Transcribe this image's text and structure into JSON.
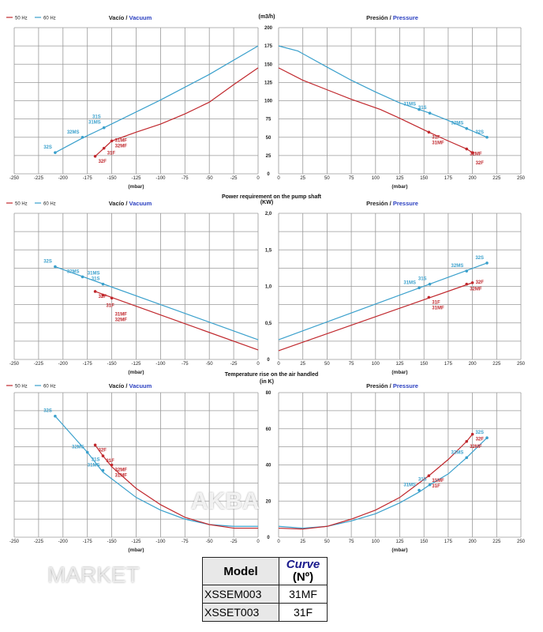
{
  "colors": {
    "hz50": "#c0282d",
    "hz60": "#3aa0cc",
    "grid": "#9a9a9a",
    "pressure_word": "#2a3fc0"
  },
  "legend": {
    "hz50": "50 Hz",
    "hz60": "60 Hz"
  },
  "watermark": [
    "AKBA",
    "MARKET"
  ],
  "table": {
    "headers": {
      "model": "Model",
      "curve": "Curve",
      "curve_sub": "(Nº)"
    },
    "rows": [
      {
        "model": "XSSEM003",
        "curve": "31MF"
      },
      {
        "model": "XSSET003",
        "curve": "31F"
      }
    ]
  },
  "chart_data": [
    {
      "type": "line",
      "title": "",
      "yunit": "(m3/h)",
      "ylim": [
        0,
        200
      ],
      "yticks": [
        "0",
        "25",
        "50",
        "75",
        "100",
        "125",
        "150",
        "175",
        "200"
      ],
      "ytick_values": [
        0,
        25,
        50,
        75,
        100,
        125,
        150,
        175,
        200
      ],
      "grid_step": 25,
      "vacuum_label": [
        "Vacío / ",
        "Vacuum"
      ],
      "pressure_label": [
        "Presión / ",
        "Pressure"
      ],
      "xlabel": "(mbar)",
      "vacuum_xticks": [
        "-250",
        "-225",
        "-200",
        "-175",
        "-150",
        "-125",
        "-100",
        "-75",
        "-50",
        "-25",
        "0"
      ],
      "pressure_xticks": [
        "0",
        "25",
        "50",
        "75",
        "100",
        "125",
        "150",
        "175",
        "200",
        "225",
        "250"
      ],
      "vacuum": [
        {
          "name": "60 Hz",
          "points": [
            [
              -208,
              29
            ],
            [
              -180,
              49
            ],
            [
              -158,
              63
            ],
            [
              -100,
              101
            ],
            [
              -50,
              136
            ],
            [
              0,
              175
            ]
          ],
          "markers": [
            {
              "x": -208,
              "y": 29,
              "labels": [
                "32S"
              ]
            },
            {
              "x": -180,
              "y": 50,
              "labels": [
                "32MS"
              ]
            },
            {
              "x": -158,
              "y": 63,
              "labels": [
                "31S",
                "31MS"
              ]
            }
          ]
        },
        {
          "name": "50 Hz",
          "points": [
            [
              -167,
              24
            ],
            [
              -158,
              35
            ],
            [
              -150,
              45
            ],
            [
              -125,
              57
            ],
            [
              -100,
              68
            ],
            [
              -75,
              82
            ],
            [
              -50,
              98
            ],
            [
              -25,
              122
            ],
            [
              0,
              145
            ]
          ],
          "markers": [
            {
              "x": -167,
              "y": 24,
              "labels": [
                "32F"
              ]
            },
            {
              "x": -158,
              "y": 35,
              "labels": [
                "31F"
              ]
            },
            {
              "x": -150,
              "y": 45,
              "labels": [
                "31MF",
                "32MF"
              ]
            }
          ]
        }
      ],
      "pressure": [
        {
          "name": "60 Hz",
          "points": [
            [
              0,
              175
            ],
            [
              20,
              168
            ],
            [
              50,
              146
            ],
            [
              75,
              128
            ],
            [
              100,
              112
            ],
            [
              125,
              97
            ],
            [
              145,
              88
            ],
            [
              156,
              83
            ],
            [
              175,
              73
            ],
            [
              194,
              62
            ],
            [
              215,
              50
            ]
          ],
          "markers": [
            {
              "x": 145,
              "y": 88,
              "labels": [
                "31MS"
              ]
            },
            {
              "x": 156,
              "y": 83,
              "labels": [
                "31S"
              ]
            },
            {
              "x": 194,
              "y": 62,
              "labels": [
                "32MS"
              ]
            },
            {
              "x": 215,
              "y": 50,
              "labels": [
                "32S"
              ]
            }
          ]
        },
        {
          "name": "50 Hz",
          "points": [
            [
              0,
              145
            ],
            [
              25,
              128
            ],
            [
              50,
              115
            ],
            [
              75,
              102
            ],
            [
              105,
              88
            ],
            [
              125,
              76
            ],
            [
              155,
              57
            ],
            [
              175,
              45
            ],
            [
              194,
              34
            ],
            [
              200,
              29
            ]
          ],
          "markers": [
            {
              "x": 155,
              "y": 57,
              "labels": [
                "31F",
                "31MF"
              ]
            },
            {
              "x": 194,
              "y": 34,
              "labels": [
                "32MF"
              ]
            },
            {
              "x": 200,
              "y": 29,
              "labels": [
                "32F"
              ]
            }
          ]
        }
      ]
    },
    {
      "type": "line",
      "title": "Power requirement on the pump shaft",
      "yunit": "(KW)",
      "ylim": [
        0,
        2
      ],
      "yticks": [
        "0",
        "0,5",
        "1,0",
        "1,5",
        "2,0"
      ],
      "ytick_values": [
        0,
        0.5,
        1,
        1.5,
        2
      ],
      "grid_step": 0.25,
      "vacuum_label": [
        "Vacío / ",
        "Vacuum"
      ],
      "pressure_label": [
        "Presión / ",
        "Pressure"
      ],
      "xlabel": "(mbar)",
      "vacuum_xticks": [
        "-250",
        "-225",
        "-200",
        "-175",
        "-150",
        "-125",
        "-100",
        "-75",
        "-50",
        "-25",
        "0"
      ],
      "pressure_xticks": [
        "0",
        "25",
        "50",
        "75",
        "100",
        "125",
        "150",
        "175",
        "200",
        "225",
        "250"
      ],
      "vacuum": [
        {
          "name": "60 Hz",
          "points": [
            [
              -208,
              1.27
            ],
            [
              0,
              0.27
            ]
          ],
          "markers": [
            {
              "x": -208,
              "y": 1.27,
              "labels": [
                "32S"
              ]
            },
            {
              "x": -180,
              "y": 1.13,
              "labels": [
                "32MS"
              ]
            },
            {
              "x": -159,
              "y": 1.03,
              "labels": [
                "31MS",
                "31S"
              ]
            }
          ]
        },
        {
          "name": "50 Hz",
          "points": [
            [
              -167,
              0.93
            ],
            [
              0,
              0.13
            ]
          ],
          "markers": [
            {
              "x": -167,
              "y": 0.93,
              "labels": [
                "32F"
              ]
            },
            {
              "x": -159,
              "y": 0.88,
              "labels": [
                "31F"
              ]
            },
            {
              "x": -150,
              "y": 0.84,
              "labels": [
                "31MF",
                "32MF"
              ]
            }
          ]
        }
      ],
      "pressure": [
        {
          "name": "60 Hz",
          "points": [
            [
              0,
              0.27
            ],
            [
              215,
              1.32
            ]
          ],
          "markers": [
            {
              "x": 145,
              "y": 0.98,
              "labels": [
                "31MS"
              ]
            },
            {
              "x": 156,
              "y": 1.03,
              "labels": [
                "31S"
              ]
            },
            {
              "x": 194,
              "y": 1.21,
              "labels": [
                "32MS"
              ]
            },
            {
              "x": 215,
              "y": 1.32,
              "labels": [
                "32S"
              ]
            }
          ]
        },
        {
          "name": "50 Hz",
          "points": [
            [
              0,
              0.12
            ],
            [
              200,
              1.05
            ]
          ],
          "markers": [
            {
              "x": 155,
              "y": 0.85,
              "labels": [
                "31F",
                "31MF"
              ]
            },
            {
              "x": 194,
              "y": 1.03,
              "labels": [
                "32MF"
              ]
            },
            {
              "x": 200,
              "y": 1.05,
              "labels": [
                "32F"
              ]
            }
          ]
        }
      ]
    },
    {
      "type": "line",
      "title": "Temperature rise on the air handled",
      "yunit": "(in K)",
      "ylim": [
        0,
        80
      ],
      "yticks": [
        "0",
        "20",
        "40",
        "60",
        "80"
      ],
      "ytick_values": [
        0,
        20,
        40,
        60,
        80
      ],
      "grid_step": 10,
      "vacuum_label": [
        "Vacío / ",
        "Vacuum"
      ],
      "pressure_label": [
        "Presión / ",
        "Pressure"
      ],
      "xlabel": "(mbar)",
      "vacuum_xticks": [
        "-250",
        "-225",
        "-200",
        "-175",
        "-150",
        "-125",
        "-100",
        "-75",
        "-50",
        "-25",
        "0"
      ],
      "pressure_xticks": [
        "0",
        "25",
        "50",
        "75",
        "100",
        "125",
        "150",
        "175",
        "200",
        "225",
        "250"
      ],
      "vacuum": [
        {
          "name": "60 Hz",
          "points": [
            [
              -208,
              67
            ],
            [
              -180,
              50
            ],
            [
              -175,
              47
            ],
            [
              -159,
              36
            ],
            [
              -125,
              22
            ],
            [
              -100,
              15
            ],
            [
              -75,
              10
            ],
            [
              -50,
              7
            ],
            [
              -25,
              6
            ],
            [
              0,
              6
            ]
          ],
          "markers": [
            {
              "x": -208,
              "y": 67,
              "labels": [
                "32S"
              ]
            },
            {
              "x": -175,
              "y": 47,
              "labels": [
                "32MS"
              ]
            },
            {
              "x": -159,
              "y": 37,
              "labels": [
                "31S",
                "31MS"
              ]
            }
          ]
        },
        {
          "name": "50 Hz",
          "points": [
            [
              -167,
              51
            ],
            [
              -159,
              45
            ],
            [
              -150,
              39
            ],
            [
              -125,
              27
            ],
            [
              -100,
              18
            ],
            [
              -75,
              11
            ],
            [
              -50,
              7
            ],
            [
              -25,
              5
            ],
            [
              0,
              5
            ]
          ],
          "markers": [
            {
              "x": -167,
              "y": 51,
              "labels": [
                "32F"
              ]
            },
            {
              "x": -159,
              "y": 45,
              "labels": [
                "31F"
              ]
            },
            {
              "x": -150,
              "y": 40,
              "labels": [
                "32MF",
                "31MF"
              ]
            }
          ]
        }
      ],
      "pressure": [
        {
          "name": "60 Hz",
          "points": [
            [
              0,
              6
            ],
            [
              25,
              5
            ],
            [
              50,
              6
            ],
            [
              75,
              9
            ],
            [
              100,
              13
            ],
            [
              125,
              19
            ],
            [
              145,
              25
            ],
            [
              156,
              29
            ],
            [
              175,
              35
            ],
            [
              194,
              44
            ],
            [
              215,
              55
            ]
          ],
          "markers": [
            {
              "x": 145,
              "y": 26,
              "labels": [
                "31MS"
              ]
            },
            {
              "x": 156,
              "y": 29,
              "labels": [
                "31S"
              ]
            },
            {
              "x": 194,
              "y": 44,
              "labels": [
                "32MS"
              ]
            },
            {
              "x": 215,
              "y": 55,
              "labels": [
                "32S"
              ]
            }
          ]
        },
        {
          "name": "50 Hz",
          "points": [
            [
              0,
              5
            ],
            [
              25,
              4.5
            ],
            [
              50,
              6
            ],
            [
              75,
              10
            ],
            [
              100,
              15
            ],
            [
              125,
              22
            ],
            [
              155,
              34
            ],
            [
              175,
              43
            ],
            [
              194,
              53
            ],
            [
              200,
              57
            ]
          ],
          "markers": [
            {
              "x": 155,
              "y": 34,
              "labels": [
                "31MF",
                "31F"
              ]
            },
            {
              "x": 194,
              "y": 53,
              "labels": [
                "32MF"
              ]
            },
            {
              "x": 200,
              "y": 57,
              "labels": [
                "32F"
              ]
            }
          ]
        }
      ]
    }
  ]
}
